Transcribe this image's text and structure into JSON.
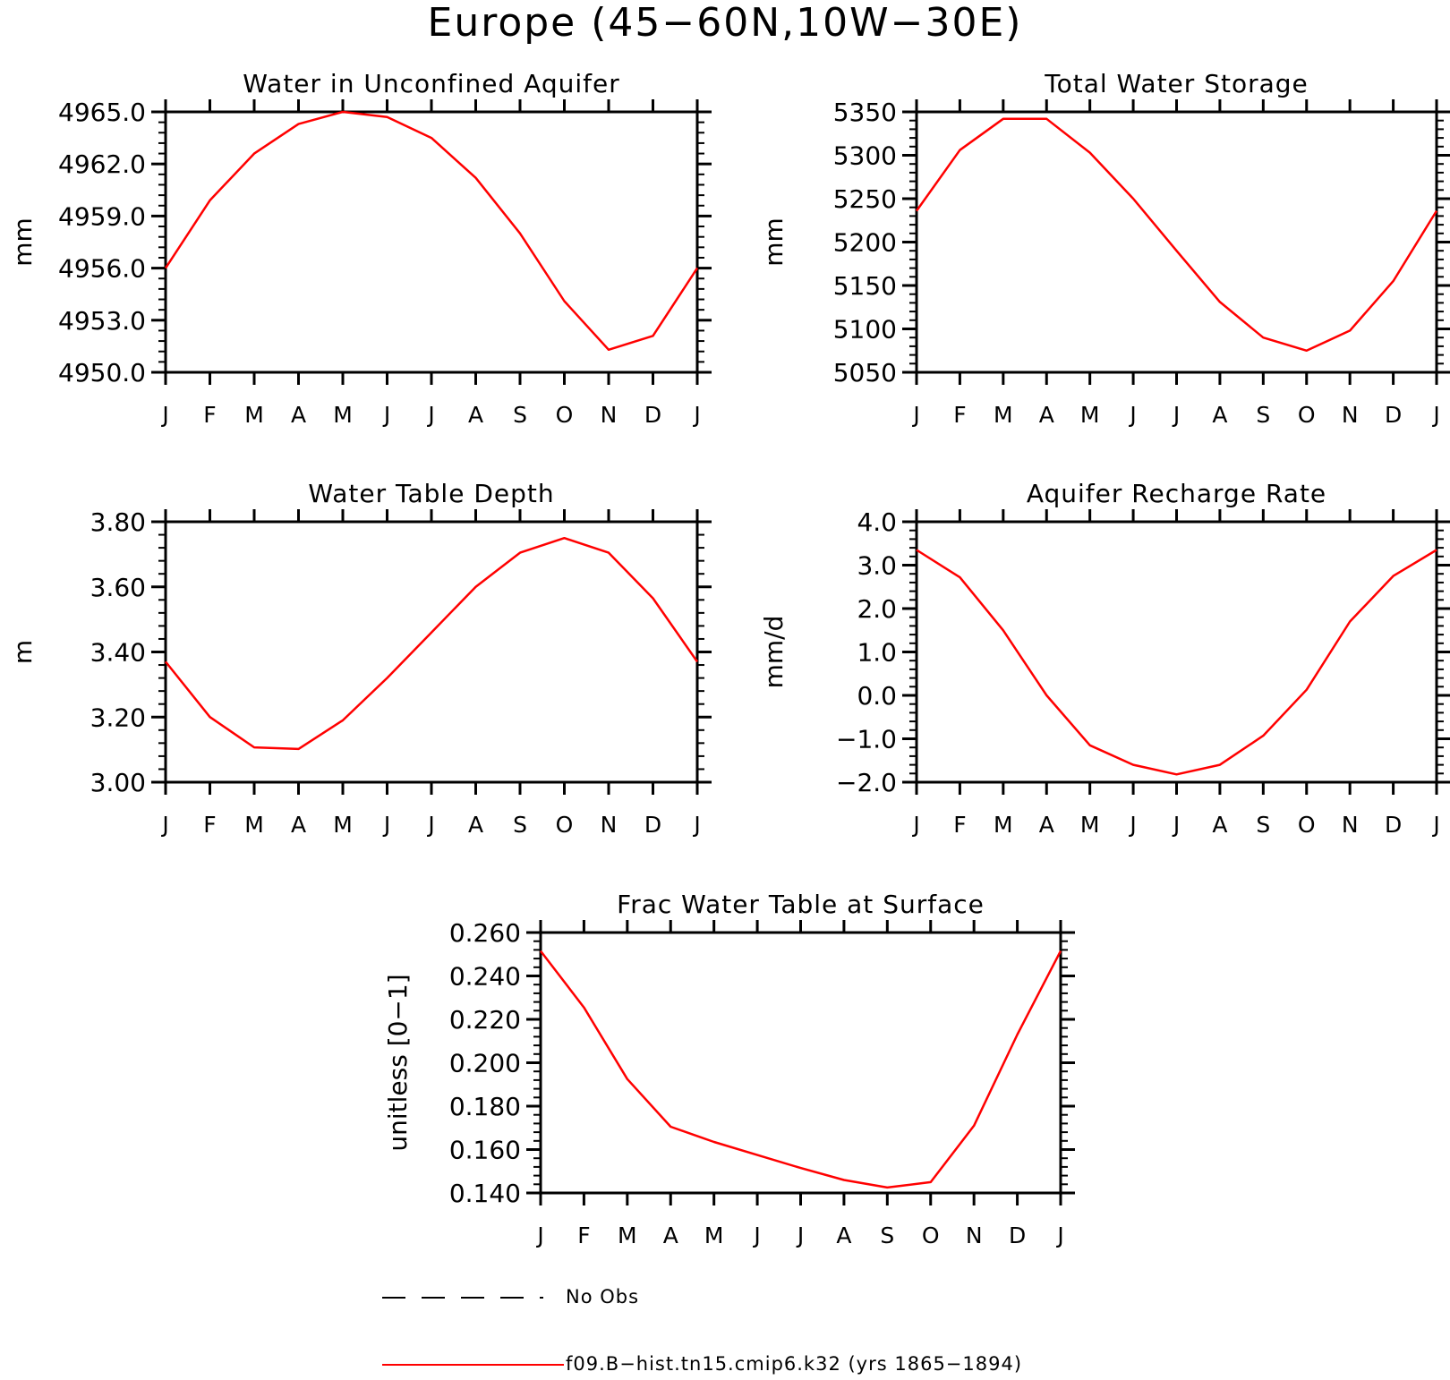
{
  "figure": {
    "title": "Europe (45−60N,10W−30E)"
  },
  "legend": {
    "items": [
      {
        "label": "No Obs",
        "style": "dashed",
        "color": "#000000"
      },
      {
        "label": "f09.B−hist.tn15.cmip6.k32 (yrs 1865−1894)",
        "style": "solid",
        "color": "#ff0000"
      }
    ]
  },
  "chart_data": [
    {
      "type": "line",
      "title": "Water in Unconfined Aquifer",
      "ylabel": "mm",
      "categories": [
        "J",
        "F",
        "M",
        "A",
        "M",
        "J",
        "J",
        "A",
        "S",
        "O",
        "N",
        "D",
        "J"
      ],
      "ylim": [
        4950.0,
        4965.0
      ],
      "yticks": [
        "4950.0",
        "4953.0",
        "4956.0",
        "4959.0",
        "4962.0",
        "4965.0"
      ],
      "series": [
        {
          "color": "#ff0000",
          "values": [
            4956.0,
            4959.9,
            4962.6,
            4964.3,
            4965.0,
            4964.7,
            4963.5,
            4961.2,
            4958.0,
            4954.1,
            4951.3,
            4952.1,
            4956.0
          ]
        }
      ]
    },
    {
      "type": "line",
      "title": "Total Water Storage",
      "ylabel": "mm",
      "categories": [
        "J",
        "F",
        "M",
        "A",
        "M",
        "J",
        "J",
        "A",
        "S",
        "O",
        "N",
        "D",
        "J"
      ],
      "ylim": [
        5050,
        5350
      ],
      "yticks": [
        "5050",
        "5100",
        "5150",
        "5200",
        "5250",
        "5300",
        "5350"
      ],
      "series": [
        {
          "color": "#ff0000",
          "values": [
            5236,
            5306,
            5342,
            5342,
            5303,
            5250,
            5190,
            5131,
            5090,
            5075,
            5098,
            5155,
            5236
          ]
        }
      ]
    },
    {
      "type": "line",
      "title": "Water Table Depth",
      "ylabel": "m",
      "categories": [
        "J",
        "F",
        "M",
        "A",
        "M",
        "J",
        "J",
        "A",
        "S",
        "O",
        "N",
        "D",
        "J"
      ],
      "ylim": [
        3.0,
        3.8
      ],
      "yticks": [
        "3.00",
        "3.20",
        "3.40",
        "3.60",
        "3.80"
      ],
      "series": [
        {
          "color": "#ff0000",
          "values": [
            3.37,
            3.2,
            3.107,
            3.102,
            3.19,
            3.32,
            3.46,
            3.6,
            3.705,
            3.75,
            3.705,
            3.565,
            3.37
          ]
        }
      ]
    },
    {
      "type": "line",
      "title": "Aquifer Recharge Rate",
      "ylabel": "mm/d",
      "categories": [
        "J",
        "F",
        "M",
        "A",
        "M",
        "J",
        "J",
        "A",
        "S",
        "O",
        "N",
        "D",
        "J"
      ],
      "ylim": [
        -2.0,
        4.0
      ],
      "yticks": [
        "−2.0",
        "−1.0",
        "0.0",
        "1.0",
        "2.0",
        "3.0",
        "4.0"
      ],
      "series": [
        {
          "color": "#ff0000",
          "values": [
            3.35,
            2.72,
            1.5,
            0.0,
            -1.15,
            -1.6,
            -1.82,
            -1.6,
            -0.93,
            0.13,
            1.7,
            2.75,
            3.35
          ]
        }
      ]
    },
    {
      "type": "line",
      "title": "Frac Water Table at Surface",
      "ylabel": "unitless [0−1]",
      "categories": [
        "J",
        "F",
        "M",
        "A",
        "M",
        "J",
        "J",
        "A",
        "S",
        "O",
        "N",
        "D",
        "J"
      ],
      "ylim": [
        0.14,
        0.26
      ],
      "yticks": [
        "0.140",
        "0.160",
        "0.180",
        "0.200",
        "0.220",
        "0.240",
        "0.260"
      ],
      "series": [
        {
          "color": "#ff0000",
          "values": [
            0.2515,
            0.2255,
            0.1925,
            0.1705,
            0.1635,
            0.1575,
            0.1515,
            0.146,
            0.1425,
            0.145,
            0.171,
            0.213,
            0.2515
          ]
        }
      ]
    }
  ]
}
